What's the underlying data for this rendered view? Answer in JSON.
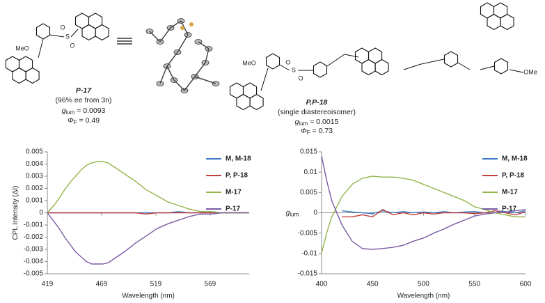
{
  "structures": {
    "atoms": [
      "MeO",
      "O",
      "S",
      "O",
      "MeO",
      "S",
      "O",
      "O",
      "OMe"
    ]
  },
  "compounds": [
    {
      "name": "P-17",
      "note": "(96% ee from 3n)",
      "glum": {
        "symbol": "g",
        "sub": "lum",
        "text": " = 0.0093"
      },
      "phi": {
        "symbol": "Φ",
        "sub": "F",
        "text": " = 0.49"
      }
    },
    {
      "name": "P,P-18",
      "note": "(single diastereoisomer)",
      "glum": {
        "symbol": "g",
        "sub": "lum",
        "text": " = 0.0015"
      },
      "phi": {
        "symbol": "Φ",
        "sub": "F",
        "text": " = 0.73"
      }
    }
  ],
  "chart_data": [
    {
      "type": "line",
      "x_label": "Wavelength (nm)",
      "y_label": {
        "text": "CPL Intensity (ΔI)"
      },
      "xlim": [
        419,
        605
      ],
      "xticks": [
        419,
        469,
        519,
        569
      ],
      "ylim": [
        -0.005,
        0.005
      ],
      "yticks": [
        -0.005,
        -0.004,
        -0.003,
        -0.002,
        -0.001,
        0,
        0.001,
        0.002,
        0.003,
        0.004,
        0.005
      ],
      "legend": "upper right",
      "x": [
        419,
        425,
        430,
        435,
        440,
        445,
        450,
        455,
        460,
        465,
        470,
        475,
        480,
        490,
        500,
        510,
        520,
        530,
        540,
        550,
        560,
        570,
        580,
        590,
        600,
        605
      ],
      "series": [
        {
          "name": "M, M-18",
          "color": "#3a78c2",
          "values": [
            0,
            0,
            0,
            0,
            0,
            0,
            0,
            0,
            0,
            0,
            0,
            0,
            0,
            0,
            0,
            0,
            0,
            0,
            0.0001,
            0,
            0,
            0.0001,
            0,
            0,
            0,
            0
          ]
        },
        {
          "name": "P, P-18",
          "color": "#c0403c",
          "values": [
            0,
            0,
            0,
            0,
            0,
            0,
            0,
            0,
            0,
            0,
            0,
            0,
            0,
            0,
            0,
            -0.0001,
            0,
            0,
            0,
            0,
            0,
            0,
            0,
            0,
            0,
            0
          ]
        },
        {
          "name": "M-17",
          "color": "#93b54a",
          "values": [
            0,
            0.0006,
            0.0012,
            0.0019,
            0.0025,
            0.003,
            0.0035,
            0.0039,
            0.0041,
            0.0042,
            0.0042,
            0.0041,
            0.0038,
            0.0032,
            0.0026,
            0.0019,
            0.0014,
            0.0009,
            0.0006,
            0.0003,
            0.0001,
            0.0001,
            0,
            0,
            0,
            0
          ]
        },
        {
          "name": "P-17",
          "color": "#7b5ba6",
          "values": [
            0,
            -0.0007,
            -0.0013,
            -0.002,
            -0.0026,
            -0.0032,
            -0.0036,
            -0.004,
            -0.0042,
            -0.0042,
            -0.0042,
            -0.0041,
            -0.0038,
            -0.0032,
            -0.0025,
            -0.0019,
            -0.0013,
            -0.0009,
            -0.0006,
            -0.0003,
            -0.0001,
            -0.0001,
            0,
            0,
            0,
            0
          ]
        }
      ]
    },
    {
      "type": "line",
      "x_label": "Wavelength (nm)",
      "y_label": {
        "symbol": "g",
        "sub": "lum"
      },
      "xlim": [
        400,
        600
      ],
      "xticks": [
        400,
        450,
        500,
        550,
        600
      ],
      "ylim": [
        -0.015,
        0.015
      ],
      "yticks": [
        -0.015,
        -0.01,
        -0.005,
        0,
        0.005,
        0.01,
        0.015
      ],
      "legend": "upper right",
      "x": [
        400,
        405,
        410,
        420,
        430,
        440,
        450,
        460,
        470,
        480,
        490,
        500,
        510,
        520,
        530,
        540,
        550,
        560,
        570,
        580,
        590,
        600
      ],
      "series": [
        {
          "name": "M, M-18",
          "color": "#3a78c2",
          "values": [
            null,
            null,
            null,
            0.0005,
            0.0002,
            0,
            -0.0002,
            0.0005,
            0,
            0.0003,
            0,
            0.0002,
            0,
            0.0003,
            0,
            0.0002,
            0.0003,
            0,
            0.0005,
            0.0003,
            0,
            0.0005
          ]
        },
        {
          "name": "P, P-18",
          "color": "#c0403c",
          "values": [
            null,
            null,
            null,
            -0.001,
            -0.001,
            -0.0005,
            -0.001,
            0.0008,
            -0.0005,
            0,
            -0.0005,
            0,
            -0.0003,
            0,
            0,
            0,
            -0.0002,
            0,
            0.0005,
            0,
            -0.0005,
            0.0002
          ]
        },
        {
          "name": "M-17",
          "color": "#93b54a",
          "values": [
            -0.01,
            -0.005,
            -0.001,
            0.004,
            0.007,
            0.0085,
            0.009,
            0.0088,
            0.0088,
            0.0085,
            0.008,
            0.007,
            0.006,
            0.005,
            0.004,
            0.003,
            0.0015,
            0.0008,
            0,
            -0.0005,
            -0.001,
            -0.001
          ]
        },
        {
          "name": "P-17",
          "color": "#7b5ba6",
          "values": [
            0.014,
            0.008,
            0.003,
            -0.003,
            -0.007,
            -0.0088,
            -0.009,
            -0.0088,
            -0.0085,
            -0.008,
            -0.007,
            -0.0062,
            -0.005,
            -0.004,
            -0.0028,
            -0.0018,
            -0.0008,
            -0.0003,
            0,
            0.0002,
            0.0005,
            0.0008
          ]
        }
      ]
    }
  ]
}
